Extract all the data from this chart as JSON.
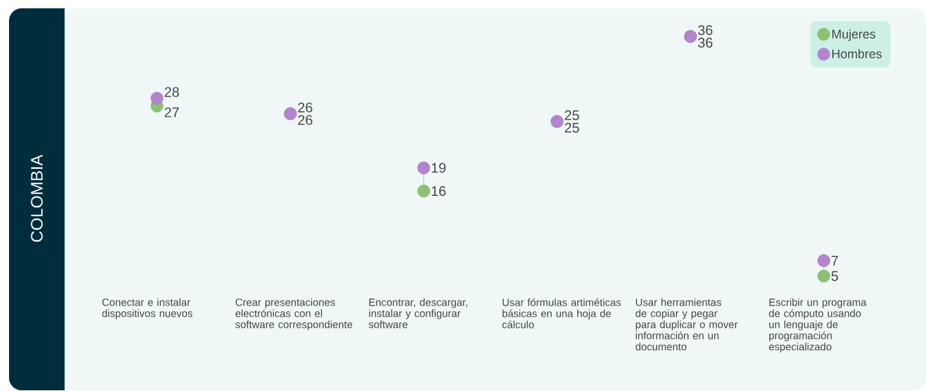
{
  "chart_data": {
    "type": "scatter",
    "title": "COLOMBIA",
    "categories": [
      "Conectar e instalar dispositivos nuevos",
      "Crear presentaciones electrónicas con el software correspondiente",
      "Encontrar, descargar, instalar y configurar software",
      "Usar fórmulas artiméticas básicas en una hoja de cálculo",
      "Usar herramientas de copiar y pegar para duplicar o mover información en un documento",
      "Escribir un programa de cómputo usando un lenguaje de programación especializado"
    ],
    "series": [
      {
        "name": "Mujeres",
        "color": "#8cc175",
        "values": [
          27,
          26,
          16,
          25,
          36,
          5
        ]
      },
      {
        "name": "Hombres",
        "color": "#b383d0",
        "values": [
          28,
          26,
          19,
          25,
          36,
          7
        ]
      }
    ],
    "data_labels": true,
    "legend": "top right",
    "grid": false
  }
}
